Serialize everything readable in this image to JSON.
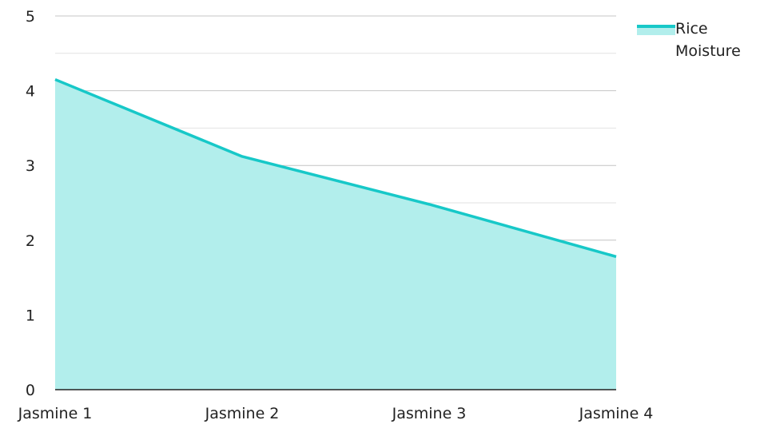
{
  "chart_data": {
    "type": "area",
    "categories": [
      "Jasmine 1",
      "Jasmine 2",
      "Jasmine 3",
      "Jasmine 4"
    ],
    "series": [
      {
        "name": "Rice Moisture",
        "values": [
          4.15,
          3.12,
          2.48,
          1.78
        ]
      }
    ],
    "ylim": [
      0,
      5
    ],
    "yticks": [
      0,
      1,
      2,
      3,
      4,
      5
    ],
    "grid": true,
    "legend_position": "top-right",
    "colors": {
      "line": "#17c8c8",
      "fill": "#b2eeec",
      "grid": "#cfcfcf",
      "axis": "#222222"
    }
  }
}
